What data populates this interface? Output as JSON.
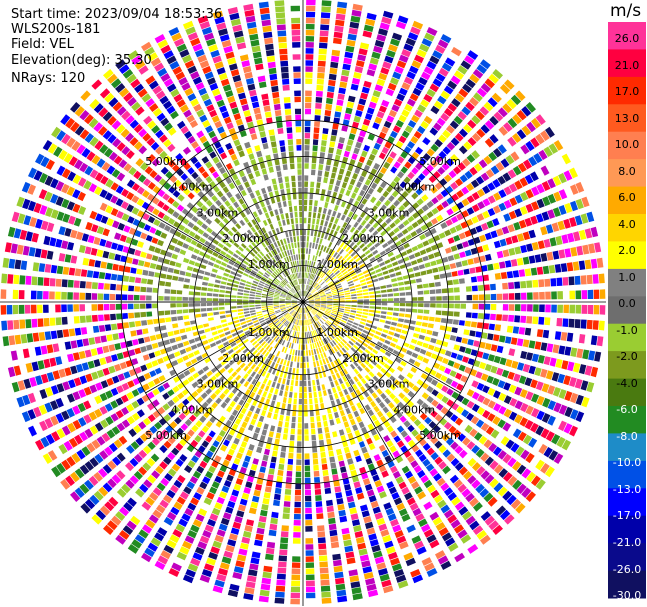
{
  "info": {
    "start_time": "Start time: 2023/09/04 18:53:36",
    "instrument": "WLS200s-181",
    "field": "Field: VEL",
    "elevation": "Elevation(deg): 35.30",
    "nrays": "NRays: 120"
  },
  "chart_data": {
    "type": "heatmap",
    "projection": "polar-ppi",
    "field": "VEL",
    "n_rays": 120,
    "range_rings_km": [
      1.0,
      2.0,
      3.0,
      4.0,
      5.0
    ],
    "range_ring_labels": [
      "1.00km",
      "2.00km",
      "3.00km",
      "4.00km",
      "5.00km"
    ],
    "radial_lines_deg": [
      0,
      30,
      60,
      90,
      120,
      150,
      180,
      210,
      240,
      270,
      300,
      330
    ],
    "max_range_km": 5.0,
    "colorbar": {
      "unit": "m/s",
      "ticks": [
        "26.0",
        "21.0",
        "17.0",
        "13.0",
        "10.0",
        "8.0",
        "6.0",
        "4.0",
        "2.0",
        "1.0",
        "0.0",
        "-1.0",
        "-2.0",
        "-4.0",
        "-6.0",
        "-8.0",
        "-10.0",
        "-13.0",
        "-17.0",
        "-21.0",
        "-26.0",
        "-30.0"
      ],
      "bins": [
        {
          "lo": 21.0,
          "hi": 26.0,
          "color": "#ff3399"
        },
        {
          "lo": 17.0,
          "hi": 21.0,
          "color": "#ff0040"
        },
        {
          "lo": 13.0,
          "hi": 17.0,
          "color": "#ff2a00"
        },
        {
          "lo": 10.0,
          "hi": 13.0,
          "color": "#ff5a1f"
        },
        {
          "lo": 8.0,
          "hi": 10.0,
          "color": "#ff7f50"
        },
        {
          "lo": 6.0,
          "hi": 8.0,
          "color": "#ff9955"
        },
        {
          "lo": 4.0,
          "hi": 6.0,
          "color": "#ffaa00"
        },
        {
          "lo": 2.0,
          "hi": 4.0,
          "color": "#ffd500"
        },
        {
          "lo": 1.0,
          "hi": 2.0,
          "color": "#ffff00"
        },
        {
          "lo": 0.0,
          "hi": 1.0,
          "color": "#808080"
        },
        {
          "lo": -1.0,
          "hi": 0.0,
          "color": "#6e6e6e"
        },
        {
          "lo": -2.0,
          "hi": -1.0,
          "color": "#9acd32"
        },
        {
          "lo": -4.0,
          "hi": -2.0,
          "color": "#7d9a1e"
        },
        {
          "lo": -6.0,
          "hi": -4.0,
          "color": "#4a7a10"
        },
        {
          "lo": -8.0,
          "hi": -6.0,
          "color": "#228b22"
        },
        {
          "lo": -10.0,
          "hi": -8.0,
          "color": "#1e8cc8"
        },
        {
          "lo": -13.0,
          "hi": -10.0,
          "color": "#0050e6"
        },
        {
          "lo": -17.0,
          "hi": -13.0,
          "color": "#0000ff"
        },
        {
          "lo": -21.0,
          "hi": -17.0,
          "color": "#0000aa"
        },
        {
          "lo": -26.0,
          "hi": -21.0,
          "color": "#0a0a8c"
        },
        {
          "lo": -30.0,
          "hi": -26.0,
          "color": "#101060"
        }
      ]
    },
    "velocity_pattern": {
      "inner_region_km": 2.8,
      "inner_negative_colors": [
        "#9acd32",
        "#7d9a1e",
        "#808080"
      ],
      "inner_positive_colors": [
        "#ffff00",
        "#ffd500",
        "#808080"
      ],
      "outer_noise_colors": [
        "#ff3399",
        "#ff0040",
        "#ff2a00",
        "#ff7f50",
        "#ffaa00",
        "#ffff00",
        "#9acd32",
        "#228b22",
        "#0050e6",
        "#0000ff",
        "#0000aa",
        "#101060",
        "#ff00ff",
        "#c000c0",
        "#ffffff"
      ]
    }
  }
}
